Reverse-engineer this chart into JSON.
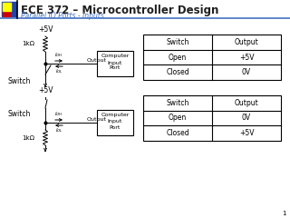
{
  "title": "ECE 372 – Microcontroller Design",
  "subtitle": "Parallel IO Ports - Inputs",
  "bg_color": "#ffffff",
  "title_color": "#1f1f1f",
  "subtitle_color": "#4472c4",
  "header_bar_colors": [
    "#ffff00",
    "#cc0000",
    "#2244aa"
  ],
  "page_number": "1",
  "table1_headers": [
    "Switch",
    "Output"
  ],
  "table1_rows": [
    [
      "Open",
      "+5V"
    ],
    [
      "Closed",
      "0V"
    ]
  ],
  "table2_headers": [
    "Switch",
    "Output"
  ],
  "table2_rows": [
    [
      "Open",
      "0V"
    ],
    [
      "Closed",
      "+5V"
    ]
  ]
}
